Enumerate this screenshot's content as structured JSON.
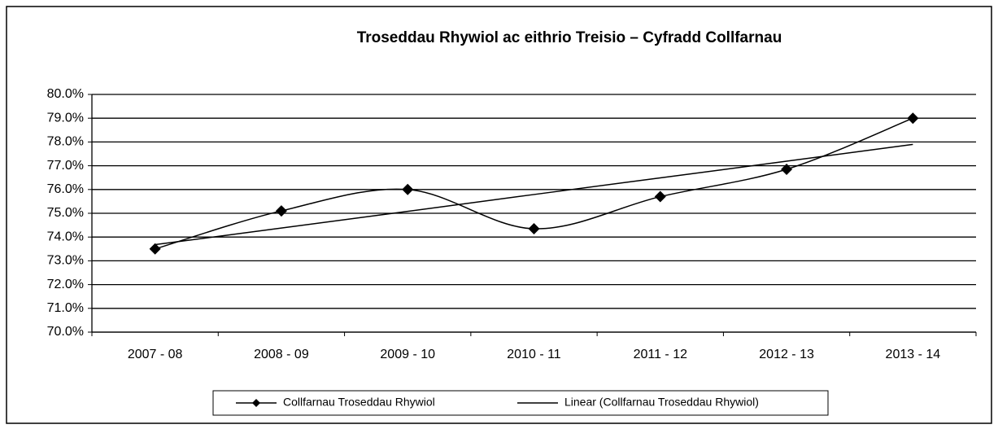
{
  "chart_data": {
    "type": "line",
    "title": "Troseddau Rhywiol ac eithrio Treisio – Cyfradd Collfarnau",
    "categories": [
      "2007 - 08",
      "2008 - 09",
      "2009 - 10",
      "2010 - 11",
      "2011 - 12",
      "2012 - 13",
      "2013 - 14"
    ],
    "series": [
      {
        "name": "Collfarnau Troseddau Rhywiol",
        "color": "#000000",
        "marker": "diamond",
        "smooth": true,
        "values": [
          73.5,
          75.1,
          76.0,
          74.35,
          75.7,
          76.85,
          79.0
        ]
      },
      {
        "name": "Linear (Collfarnau Troseddau Rhywiol)",
        "color": "#000000",
        "marker": null,
        "smooth": false,
        "values": [
          73.68,
          74.38,
          75.08,
          75.79,
          76.49,
          77.19,
          77.9
        ]
      }
    ],
    "ylim": [
      70,
      80
    ],
    "yticks": [
      {
        "value": 70,
        "label": "70.0%"
      },
      {
        "value": 71,
        "label": "71.0%"
      },
      {
        "value": 72,
        "label": "72.0%"
      },
      {
        "value": 73,
        "label": "73.0%"
      },
      {
        "value": 74,
        "label": "74.0%"
      },
      {
        "value": 75,
        "label": "75.0%"
      },
      {
        "value": 76,
        "label": "76.0%"
      },
      {
        "value": 77,
        "label": "77.0%"
      },
      {
        "value": 78,
        "label": "78.0%"
      },
      {
        "value": 79,
        "label": "79.0%"
      },
      {
        "value": 80,
        "label": "80.0%"
      }
    ],
    "grid": true,
    "legend": "bottom"
  }
}
